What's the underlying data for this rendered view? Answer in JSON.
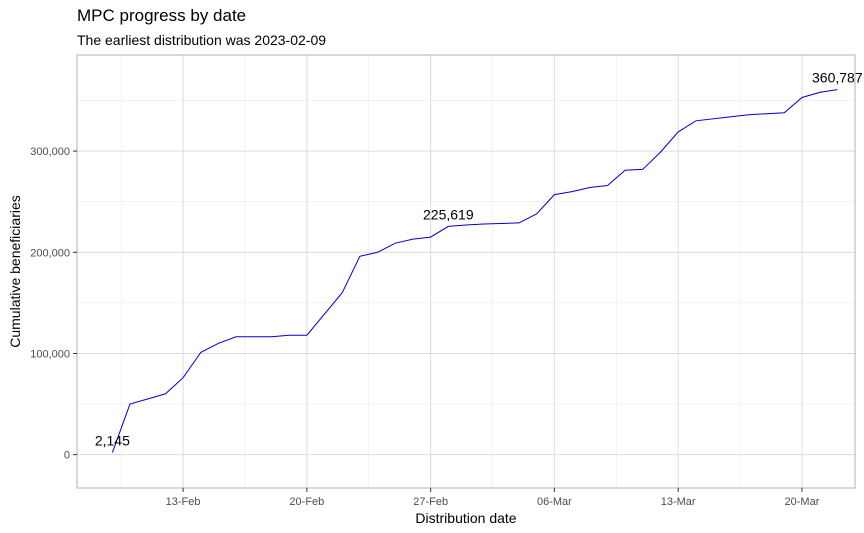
{
  "title": "MPC progress by date",
  "subtitle": "The earliest distribution was 2023-02-09",
  "chart_data": {
    "type": "line",
    "xlabel": "Distribution date",
    "ylabel": "Cumulative beneficiaries",
    "x_ticks": [
      {
        "date": "2023-02-13",
        "label": "13-Feb"
      },
      {
        "date": "2023-02-20",
        "label": "20-Feb"
      },
      {
        "date": "2023-02-27",
        "label": "27-Feb"
      },
      {
        "date": "2023-03-06",
        "label": "06-Mar"
      },
      {
        "date": "2023-03-13",
        "label": "13-Mar"
      },
      {
        "date": "2023-03-20",
        "label": "20-Mar"
      }
    ],
    "y_ticks": [
      {
        "value": 0,
        "label": "0"
      },
      {
        "value": 100000,
        "label": "100,000"
      },
      {
        "value": 200000,
        "label": "200,000"
      },
      {
        "value": 300000,
        "label": "300,000"
      }
    ],
    "xlim": [
      "2023-02-07T00:00",
      "2023-03-23T00:00"
    ],
    "ylim": [
      -33000,
      395000
    ],
    "grid": true,
    "series": [
      {
        "color": "#0000cc",
        "points": [
          {
            "x": "2023-02-09",
            "y": 2145
          },
          {
            "x": "2023-02-10",
            "y": 50000
          },
          {
            "x": "2023-02-12",
            "y": 60000
          },
          {
            "x": "2023-02-13",
            "y": 76000
          },
          {
            "x": "2023-02-14",
            "y": 101000
          },
          {
            "x": "2023-02-15",
            "y": 110000
          },
          {
            "x": "2023-02-16",
            "y": 116500
          },
          {
            "x": "2023-02-18",
            "y": 116500
          },
          {
            "x": "2023-02-19",
            "y": 118000
          },
          {
            "x": "2023-02-20",
            "y": 118000
          },
          {
            "x": "2023-02-22",
            "y": 160000
          },
          {
            "x": "2023-02-23",
            "y": 196000
          },
          {
            "x": "2023-02-24",
            "y": 200000
          },
          {
            "x": "2023-02-25",
            "y": 209000
          },
          {
            "x": "2023-02-26",
            "y": 213000
          },
          {
            "x": "2023-02-27",
            "y": 215000
          },
          {
            "x": "2023-02-28",
            "y": 225619
          },
          {
            "x": "2023-03-01",
            "y": 227000
          },
          {
            "x": "2023-03-02",
            "y": 228000
          },
          {
            "x": "2023-03-04",
            "y": 229000
          },
          {
            "x": "2023-03-05",
            "y": 238000
          },
          {
            "x": "2023-03-06",
            "y": 257000
          },
          {
            "x": "2023-03-07",
            "y": 260000
          },
          {
            "x": "2023-03-08",
            "y": 264000
          },
          {
            "x": "2023-03-09",
            "y": 266000
          },
          {
            "x": "2023-03-10",
            "y": 281000
          },
          {
            "x": "2023-03-11",
            "y": 282000
          },
          {
            "x": "2023-03-12",
            "y": 299000
          },
          {
            "x": "2023-03-13",
            "y": 319000
          },
          {
            "x": "2023-03-14",
            "y": 330000
          },
          {
            "x": "2023-03-16",
            "y": 334000
          },
          {
            "x": "2023-03-17",
            "y": 336000
          },
          {
            "x": "2023-03-19",
            "y": 338000
          },
          {
            "x": "2023-03-20",
            "y": 353000
          },
          {
            "x": "2023-03-21",
            "y": 358000
          },
          {
            "x": "2023-03-22",
            "y": 360787
          }
        ]
      }
    ],
    "annotations": [
      {
        "x": "2023-02-09",
        "y": 2145,
        "label": "2,145"
      },
      {
        "x": "2023-02-28",
        "y": 225619,
        "label": "225,619"
      },
      {
        "x": "2023-03-22",
        "y": 360787,
        "label": "360,787"
      }
    ]
  }
}
